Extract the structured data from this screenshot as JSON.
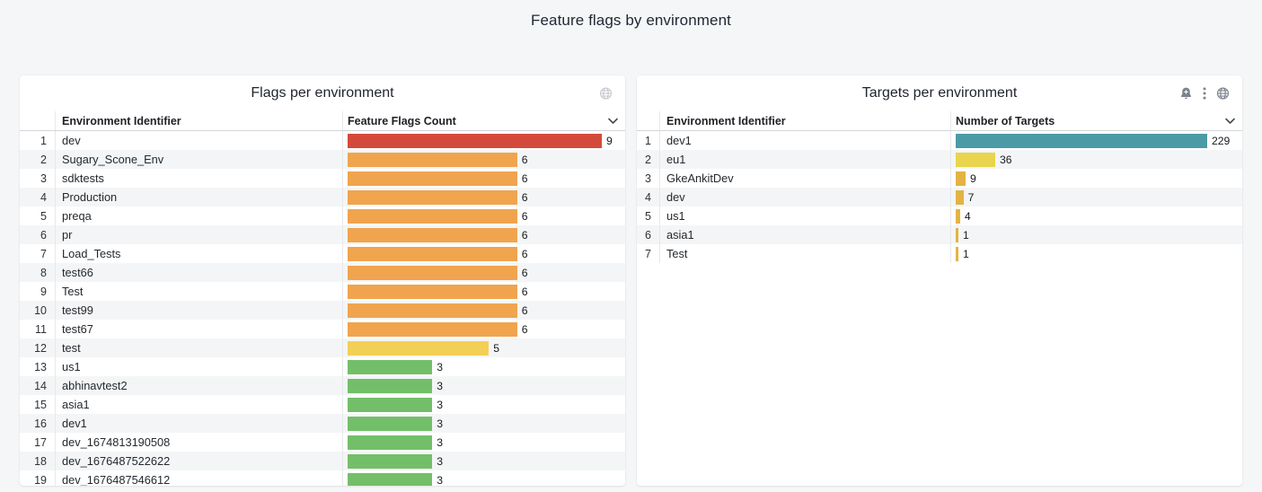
{
  "page": {
    "title": "Feature flags by environment"
  },
  "panels": [
    {
      "title": "Flags per environment",
      "icons": [
        "globe"
      ],
      "columns": {
        "id_label": "Environment Identifier",
        "value_label": "Feature Flags Count"
      },
      "max_value": 9,
      "rows": [
        {
          "index": 1,
          "env": "dev",
          "value": 9,
          "color": "#d44a3a"
        },
        {
          "index": 2,
          "env": "Sugary_Scone_Env",
          "value": 6,
          "color": "#f0a44e"
        },
        {
          "index": 3,
          "env": "sdktests",
          "value": 6,
          "color": "#f0a44e"
        },
        {
          "index": 4,
          "env": "Production",
          "value": 6,
          "color": "#f0a44e"
        },
        {
          "index": 5,
          "env": "preqa",
          "value": 6,
          "color": "#f0a44e"
        },
        {
          "index": 6,
          "env": "pr",
          "value": 6,
          "color": "#f0a44e"
        },
        {
          "index": 7,
          "env": "Load_Tests",
          "value": 6,
          "color": "#f0a44e"
        },
        {
          "index": 8,
          "env": "test66",
          "value": 6,
          "color": "#f0a44e"
        },
        {
          "index": 9,
          "env": "Test",
          "value": 6,
          "color": "#f0a44e"
        },
        {
          "index": 10,
          "env": "test99",
          "value": 6,
          "color": "#f0a44e"
        },
        {
          "index": 11,
          "env": "test67",
          "value": 6,
          "color": "#f0a44e"
        },
        {
          "index": 12,
          "env": "test",
          "value": 5,
          "color": "#f3cf56"
        },
        {
          "index": 13,
          "env": "us1",
          "value": 3,
          "color": "#73bf69"
        },
        {
          "index": 14,
          "env": "abhinavtest2",
          "value": 3,
          "color": "#73bf69"
        },
        {
          "index": 15,
          "env": "asia1",
          "value": 3,
          "color": "#73bf69"
        },
        {
          "index": 16,
          "env": "dev1",
          "value": 3,
          "color": "#73bf69"
        },
        {
          "index": 17,
          "env": "dev_1674813190508",
          "value": 3,
          "color": "#73bf69"
        },
        {
          "index": 18,
          "env": "dev_1676487522622",
          "value": 3,
          "color": "#73bf69"
        },
        {
          "index": 19,
          "env": "dev_1676487546612",
          "value": 3,
          "color": "#73bf69"
        }
      ]
    },
    {
      "title": "Targets per environment",
      "icons": [
        "bell-plus",
        "kebab-menu",
        "globe"
      ],
      "columns": {
        "id_label": "Environment Identifier",
        "value_label": "Number of Targets"
      },
      "max_value": 229,
      "rows": [
        {
          "index": 1,
          "env": "dev1",
          "value": 229,
          "color": "#4a9ba6"
        },
        {
          "index": 2,
          "env": "eu1",
          "value": 36,
          "color": "#e8d44d"
        },
        {
          "index": 3,
          "env": "GkeAnkitDev",
          "value": 9,
          "color": "#e3b343"
        },
        {
          "index": 4,
          "env": "dev",
          "value": 7,
          "color": "#e3b343"
        },
        {
          "index": 5,
          "env": "us1",
          "value": 4,
          "color": "#e3b343"
        },
        {
          "index": 6,
          "env": "asia1",
          "value": 1,
          "color": "#e3b343"
        },
        {
          "index": 7,
          "env": "Test",
          "value": 1,
          "color": "#e3b343"
        }
      ]
    }
  ],
  "chart_data": [
    {
      "type": "bar",
      "orientation": "horizontal",
      "title": "Flags per environment",
      "categories": [
        "dev",
        "Sugary_Scone_Env",
        "sdktests",
        "Production",
        "preqa",
        "pr",
        "Load_Tests",
        "test66",
        "Test",
        "test99",
        "test67",
        "test",
        "us1",
        "abhinavtest2",
        "asia1",
        "dev1",
        "dev_1674813190508",
        "dev_1676487522622",
        "dev_1676487546612"
      ],
      "values": [
        9,
        6,
        6,
        6,
        6,
        6,
        6,
        6,
        6,
        6,
        6,
        5,
        3,
        3,
        3,
        3,
        3,
        3,
        3
      ],
      "xlabel": "Feature Flags Count",
      "ylabel": "Environment Identifier",
      "xlim": [
        0,
        9
      ],
      "grid": false,
      "legend": "none",
      "bar_colors": [
        "#d44a3a",
        "#f0a44e",
        "#f0a44e",
        "#f0a44e",
        "#f0a44e",
        "#f0a44e",
        "#f0a44e",
        "#f0a44e",
        "#f0a44e",
        "#f0a44e",
        "#f0a44e",
        "#f3cf56",
        "#73bf69",
        "#73bf69",
        "#73bf69",
        "#73bf69",
        "#73bf69",
        "#73bf69",
        "#73bf69"
      ]
    },
    {
      "type": "bar",
      "orientation": "horizontal",
      "title": "Targets per environment",
      "categories": [
        "dev1",
        "eu1",
        "GkeAnkitDev",
        "dev",
        "us1",
        "asia1",
        "Test"
      ],
      "values": [
        229,
        36,
        9,
        7,
        4,
        1,
        1
      ],
      "xlabel": "Number of Targets",
      "ylabel": "Environment Identifier",
      "xlim": [
        0,
        229
      ],
      "grid": false,
      "legend": "none",
      "bar_colors": [
        "#4a9ba6",
        "#e8d44d",
        "#e3b343",
        "#e3b343",
        "#e3b343",
        "#e3b343",
        "#e3b343"
      ]
    }
  ],
  "colors": {
    "page_background": "#f5f6f7",
    "panel_background": "#ffffff",
    "row_stripe": "#f4f5f6",
    "red": "#d44a3a",
    "orange": "#f0a44e",
    "yellow": "#f3cf56",
    "green": "#73bf69",
    "teal": "#4a9ba6",
    "bright_yellow": "#e8d44d",
    "amber": "#e3b343"
  }
}
